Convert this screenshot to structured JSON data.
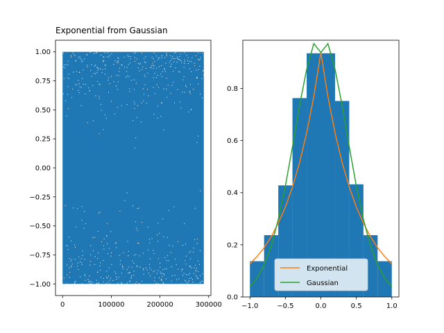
{
  "chart_data": [
    {
      "type": "scatter",
      "title": "Exponential from Gaussian",
      "xlabel": "",
      "ylabel": "",
      "xlim": [
        -14500,
        304500
      ],
      "ylim": [
        -1.1,
        1.1
      ],
      "x_ticks": [
        0,
        100000,
        200000,
        300000
      ],
      "y_ticks": [
        -1.0,
        -0.75,
        -0.5,
        -0.25,
        0.0,
        0.25,
        0.5,
        0.75,
        1.0
      ],
      "x_tick_labels": [
        "0",
        "100000",
        "200000",
        "300000"
      ],
      "y_tick_labels": [
        "−1.00",
        "−0.75",
        "−0.50",
        "−0.25",
        "0.00",
        "0.25",
        "0.50",
        "0.75",
        "1.00"
      ],
      "color": "#1f77b4",
      "points_description_range": {
        "x": [
          0,
          290000
        ],
        "y": [
          -1.0,
          1.0
        ]
      },
      "grid": false
    },
    {
      "type": "bar",
      "title": "",
      "xlabel": "",
      "ylabel": "",
      "xlim": [
        -1.1,
        1.1
      ],
      "ylim": [
        0.0,
        0.985
      ],
      "x_ticks": [
        -1.0,
        -0.5,
        0.0,
        0.5,
        1.0
      ],
      "y_ticks": [
        0.0,
        0.2,
        0.4,
        0.6,
        0.8
      ],
      "x_tick_labels": [
        "−1.0",
        "−0.5",
        "0.0",
        "0.5",
        "1.0"
      ],
      "y_tick_labels": [
        "0.0",
        "0.2",
        "0.4",
        "0.6",
        "0.8"
      ],
      "histogram": {
        "bin_edges": [
          -1.0,
          -0.8,
          -0.6,
          -0.4,
          -0.2,
          0.0,
          0.2,
          0.4,
          0.6,
          0.8,
          1.0
        ],
        "values": [
          0.137,
          0.237,
          0.428,
          0.763,
          0.935,
          0.935,
          0.752,
          0.432,
          0.237,
          0.137
        ],
        "color": "#1f77b4"
      },
      "series": [
        {
          "name": "Exponential",
          "color": "#ff7f0e",
          "x": [
            -1.0,
            -0.9,
            -0.8,
            -0.7,
            -0.6,
            -0.5,
            -0.4,
            -0.3,
            -0.2,
            -0.1,
            0.0,
            0.1,
            0.2,
            0.3,
            0.4,
            0.5,
            0.6,
            0.7,
            0.8,
            0.9,
            1.0
          ],
          "y": [
            0.127,
            0.155,
            0.189,
            0.231,
            0.283,
            0.345,
            0.422,
            0.515,
            0.629,
            0.768,
            0.938,
            0.768,
            0.629,
            0.515,
            0.422,
            0.345,
            0.283,
            0.231,
            0.189,
            0.155,
            0.127
          ]
        },
        {
          "name": "Gaussian",
          "color": "#2ca02c",
          "x": [
            -1.0,
            -0.9,
            -0.8,
            -0.7,
            -0.6,
            -0.5,
            -0.4,
            -0.3,
            -0.2,
            -0.1,
            0.0,
            0.1,
            0.2,
            0.3,
            0.4,
            0.5,
            0.6,
            0.7,
            0.8,
            0.9,
            1.0
          ],
          "y": [
            0.04,
            0.072,
            0.122,
            0.196,
            0.297,
            0.426,
            0.577,
            0.735,
            0.873,
            0.972,
            0.938,
            0.972,
            0.873,
            0.735,
            0.577,
            0.426,
            0.297,
            0.196,
            0.122,
            0.072,
            0.04
          ]
        }
      ],
      "legend": {
        "placement": "lower-center",
        "entries": [
          "Exponential",
          "Gaussian"
        ]
      },
      "grid": false
    }
  ]
}
